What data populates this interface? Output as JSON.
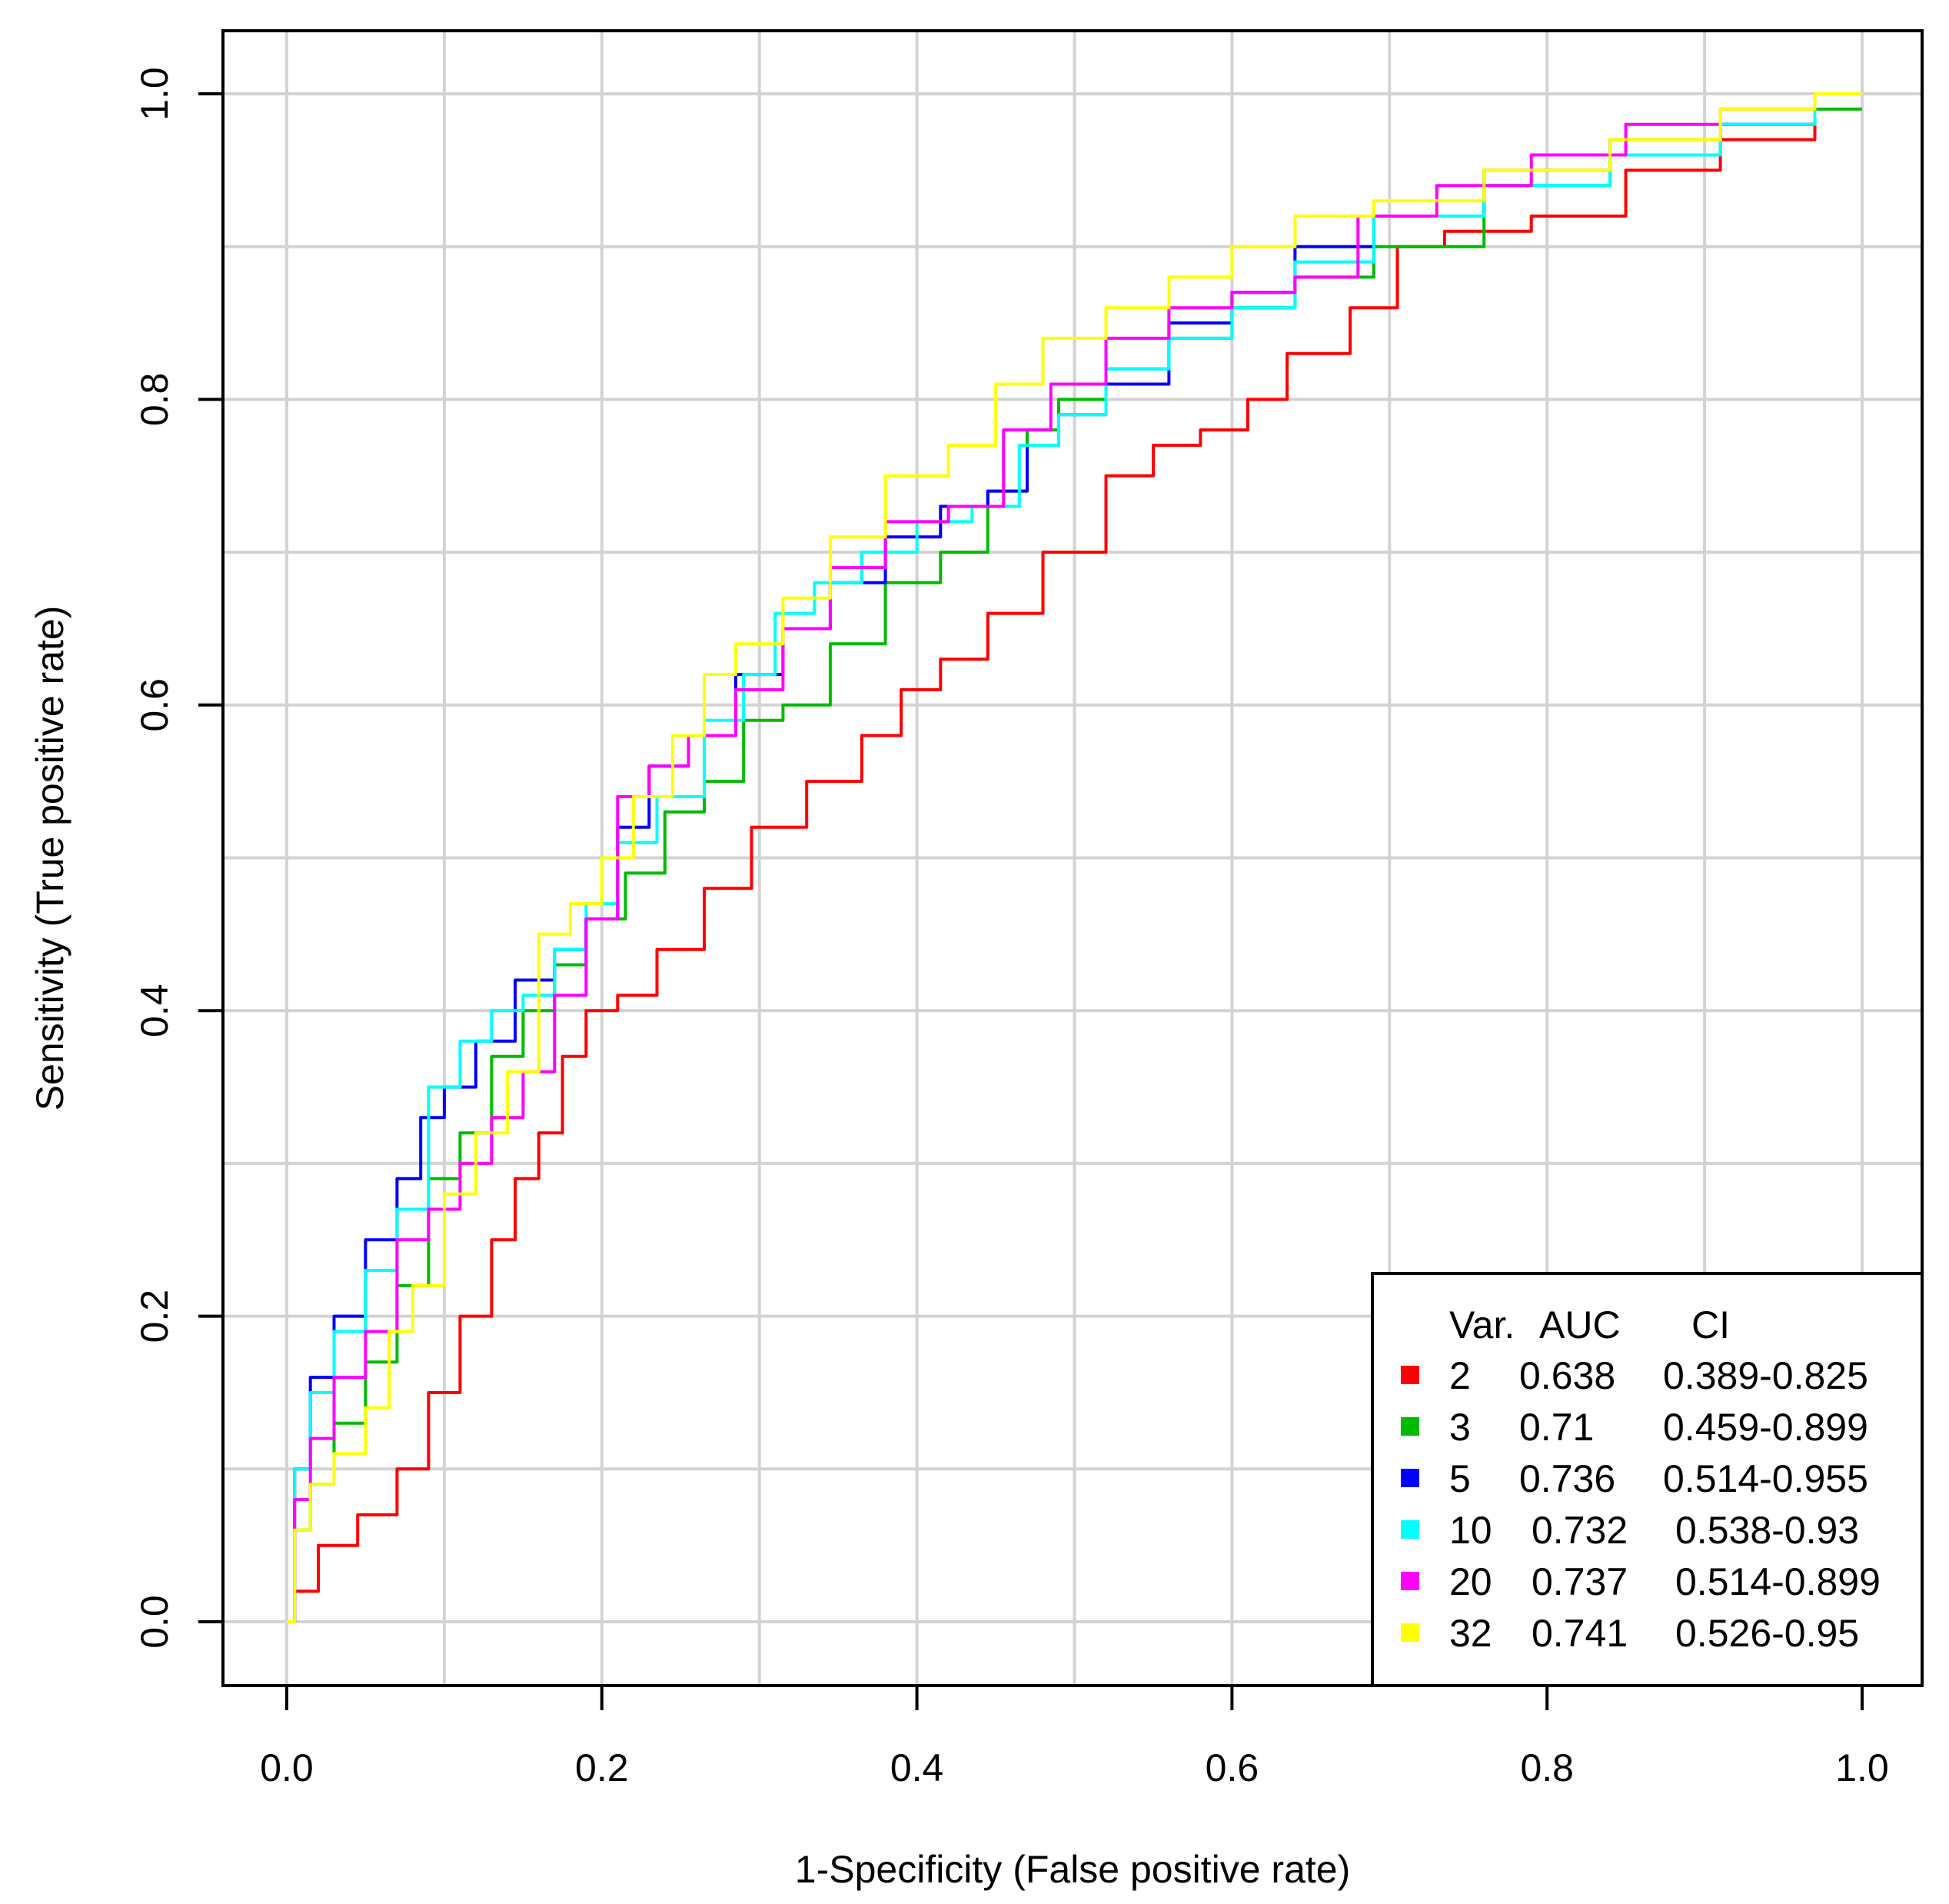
{
  "chart_data": {
    "type": "line",
    "title": "",
    "xlabel": "1-Specificity (False positive rate)",
    "ylabel": "Sensitivity (True positive rate)",
    "xlim": [
      0.0,
      1.0
    ],
    "ylim": [
      0.0,
      1.0
    ],
    "grid": true,
    "x_ticks": [
      "0.0",
      "0.2",
      "0.4",
      "0.6",
      "0.8",
      "1.0"
    ],
    "y_ticks": [
      "0.0",
      "0.2",
      "0.4",
      "0.6",
      "0.8",
      "1.0"
    ],
    "legend": {
      "position": "bottom-right",
      "headers": [
        "Var.",
        "AUC",
        "CI"
      ],
      "entries": [
        {
          "var": "2",
          "auc": "0.638",
          "ci": "0.389-0.825",
          "color": "#ff0000"
        },
        {
          "var": "3",
          "auc": "0.71",
          "ci": "0.459-0.899",
          "color": "#00bb00"
        },
        {
          "var": "5",
          "auc": "0.736",
          "ci": "0.514-0.955",
          "color": "#0000ff"
        },
        {
          "var": "10",
          "auc": "0.732",
          "ci": "0.538-0.93",
          "color": "#00ffff"
        },
        {
          "var": "20",
          "auc": "0.737",
          "ci": "0.514-0.899",
          "color": "#ff00ff"
        },
        {
          "var": "32",
          "auc": "0.741",
          "ci": "0.526-0.95",
          "color": "#ffff00"
        }
      ]
    },
    "series": [
      {
        "name": "2",
        "color": "#ff0000",
        "points": [
          [
            0,
            0
          ],
          [
            0.01,
            0.02
          ],
          [
            0.03,
            0.05
          ],
          [
            0.06,
            0.07
          ],
          [
            0.08,
            0.1
          ],
          [
            0.1,
            0.15
          ],
          [
            0.12,
            0.2
          ],
          [
            0.14,
            0.25
          ],
          [
            0.15,
            0.29
          ],
          [
            0.17,
            0.32
          ],
          [
            0.18,
            0.37
          ],
          [
            0.2,
            0.4
          ],
          [
            0.22,
            0.41
          ],
          [
            0.25,
            0.44
          ],
          [
            0.28,
            0.48
          ],
          [
            0.31,
            0.52
          ],
          [
            0.35,
            0.55
          ],
          [
            0.38,
            0.58
          ],
          [
            0.4,
            0.61
          ],
          [
            0.43,
            0.63
          ],
          [
            0.46,
            0.66
          ],
          [
            0.5,
            0.7
          ],
          [
            0.54,
            0.75
          ],
          [
            0.56,
            0.77
          ],
          [
            0.6,
            0.78
          ],
          [
            0.62,
            0.8
          ],
          [
            0.65,
            0.83
          ],
          [
            0.7,
            0.86
          ],
          [
            0.71,
            0.9
          ],
          [
            0.76,
            0.91
          ],
          [
            0.82,
            0.92
          ],
          [
            0.88,
            0.95
          ],
          [
            0.94,
            0.97
          ],
          [
            1.0,
            1.0
          ]
        ]
      },
      {
        "name": "3",
        "color": "#00bb00",
        "points": [
          [
            0,
            0
          ],
          [
            0.01,
            0.06
          ],
          [
            0.02,
            0.09
          ],
          [
            0.04,
            0.13
          ],
          [
            0.06,
            0.17
          ],
          [
            0.08,
            0.22
          ],
          [
            0.1,
            0.29
          ],
          [
            0.12,
            0.32
          ],
          [
            0.14,
            0.37
          ],
          [
            0.16,
            0.4
          ],
          [
            0.18,
            0.43
          ],
          [
            0.2,
            0.46
          ],
          [
            0.23,
            0.49
          ],
          [
            0.25,
            0.53
          ],
          [
            0.28,
            0.55
          ],
          [
            0.3,
            0.59
          ],
          [
            0.33,
            0.6
          ],
          [
            0.36,
            0.64
          ],
          [
            0.4,
            0.68
          ],
          [
            0.43,
            0.7
          ],
          [
            0.46,
            0.74
          ],
          [
            0.48,
            0.78
          ],
          [
            0.5,
            0.8
          ],
          [
            0.54,
            0.82
          ],
          [
            0.58,
            0.84
          ],
          [
            0.62,
            0.86
          ],
          [
            0.66,
            0.88
          ],
          [
            0.72,
            0.9
          ],
          [
            0.8,
            0.94
          ],
          [
            0.88,
            0.96
          ],
          [
            0.94,
            0.98
          ],
          [
            1.0,
            0.99
          ]
        ]
      },
      {
        "name": "5",
        "color": "#0000ff",
        "points": [
          [
            0,
            0
          ],
          [
            0.01,
            0.1
          ],
          [
            0.02,
            0.16
          ],
          [
            0.04,
            0.2
          ],
          [
            0.06,
            0.25
          ],
          [
            0.08,
            0.29
          ],
          [
            0.09,
            0.33
          ],
          [
            0.11,
            0.35
          ],
          [
            0.13,
            0.38
          ],
          [
            0.16,
            0.42
          ],
          [
            0.18,
            0.44
          ],
          [
            0.2,
            0.46
          ],
          [
            0.22,
            0.52
          ],
          [
            0.24,
            0.56
          ],
          [
            0.27,
            0.58
          ],
          [
            0.3,
            0.62
          ],
          [
            0.33,
            0.65
          ],
          [
            0.36,
            0.68
          ],
          [
            0.4,
            0.71
          ],
          [
            0.43,
            0.73
          ],
          [
            0.46,
            0.74
          ],
          [
            0.48,
            0.77
          ],
          [
            0.5,
            0.79
          ],
          [
            0.54,
            0.81
          ],
          [
            0.58,
            0.85
          ],
          [
            0.62,
            0.87
          ],
          [
            0.66,
            0.9
          ],
          [
            0.72,
            0.92
          ],
          [
            0.8,
            0.95
          ],
          [
            0.88,
            0.97
          ],
          [
            0.94,
            0.98
          ],
          [
            1.0,
            1.0
          ]
        ]
      },
      {
        "name": "10",
        "color": "#00ffff",
        "points": [
          [
            0,
            0
          ],
          [
            0.01,
            0.1
          ],
          [
            0.02,
            0.15
          ],
          [
            0.04,
            0.19
          ],
          [
            0.06,
            0.23
          ],
          [
            0.08,
            0.27
          ],
          [
            0.1,
            0.35
          ],
          [
            0.12,
            0.38
          ],
          [
            0.14,
            0.4
          ],
          [
            0.16,
            0.41
          ],
          [
            0.18,
            0.44
          ],
          [
            0.2,
            0.47
          ],
          [
            0.22,
            0.51
          ],
          [
            0.25,
            0.54
          ],
          [
            0.28,
            0.59
          ],
          [
            0.3,
            0.62
          ],
          [
            0.32,
            0.66
          ],
          [
            0.35,
            0.68
          ],
          [
            0.38,
            0.7
          ],
          [
            0.42,
            0.72
          ],
          [
            0.45,
            0.73
          ],
          [
            0.48,
            0.77
          ],
          [
            0.5,
            0.79
          ],
          [
            0.54,
            0.82
          ],
          [
            0.58,
            0.84
          ],
          [
            0.62,
            0.86
          ],
          [
            0.66,
            0.89
          ],
          [
            0.72,
            0.92
          ],
          [
            0.8,
            0.94
          ],
          [
            0.88,
            0.96
          ],
          [
            0.94,
            0.98
          ],
          [
            1.0,
            1.0
          ]
        ]
      },
      {
        "name": "20",
        "color": "#ff00ff",
        "points": [
          [
            0,
            0
          ],
          [
            0.01,
            0.08
          ],
          [
            0.02,
            0.12
          ],
          [
            0.04,
            0.16
          ],
          [
            0.06,
            0.19
          ],
          [
            0.08,
            0.25
          ],
          [
            0.1,
            0.27
          ],
          [
            0.12,
            0.3
          ],
          [
            0.14,
            0.33
          ],
          [
            0.16,
            0.36
          ],
          [
            0.18,
            0.41
          ],
          [
            0.2,
            0.46
          ],
          [
            0.22,
            0.54
          ],
          [
            0.24,
            0.56
          ],
          [
            0.27,
            0.58
          ],
          [
            0.3,
            0.61
          ],
          [
            0.33,
            0.65
          ],
          [
            0.36,
            0.69
          ],
          [
            0.4,
            0.72
          ],
          [
            0.44,
            0.73
          ],
          [
            0.47,
            0.78
          ],
          [
            0.5,
            0.81
          ],
          [
            0.54,
            0.84
          ],
          [
            0.58,
            0.86
          ],
          [
            0.62,
            0.87
          ],
          [
            0.66,
            0.88
          ],
          [
            0.7,
            0.92
          ],
          [
            0.76,
            0.94
          ],
          [
            0.82,
            0.96
          ],
          [
            0.88,
            0.98
          ],
          [
            0.94,
            0.99
          ],
          [
            1.0,
            1.0
          ]
        ]
      },
      {
        "name": "32",
        "color": "#ffff00",
        "points": [
          [
            0,
            0
          ],
          [
            0.01,
            0.06
          ],
          [
            0.02,
            0.09
          ],
          [
            0.04,
            0.11
          ],
          [
            0.06,
            0.14
          ],
          [
            0.07,
            0.19
          ],
          [
            0.09,
            0.22
          ],
          [
            0.11,
            0.28
          ],
          [
            0.13,
            0.32
          ],
          [
            0.15,
            0.36
          ],
          [
            0.17,
            0.45
          ],
          [
            0.19,
            0.47
          ],
          [
            0.21,
            0.5
          ],
          [
            0.23,
            0.54
          ],
          [
            0.26,
            0.58
          ],
          [
            0.27,
            0.62
          ],
          [
            0.3,
            0.64
          ],
          [
            0.33,
            0.67
          ],
          [
            0.36,
            0.71
          ],
          [
            0.4,
            0.75
          ],
          [
            0.44,
            0.77
          ],
          [
            0.46,
            0.81
          ],
          [
            0.5,
            0.84
          ],
          [
            0.54,
            0.86
          ],
          [
            0.58,
            0.88
          ],
          [
            0.62,
            0.9
          ],
          [
            0.66,
            0.92
          ],
          [
            0.72,
            0.93
          ],
          [
            0.8,
            0.95
          ],
          [
            0.88,
            0.97
          ],
          [
            0.94,
            0.99
          ],
          [
            1.0,
            1.0
          ]
        ]
      }
    ]
  }
}
